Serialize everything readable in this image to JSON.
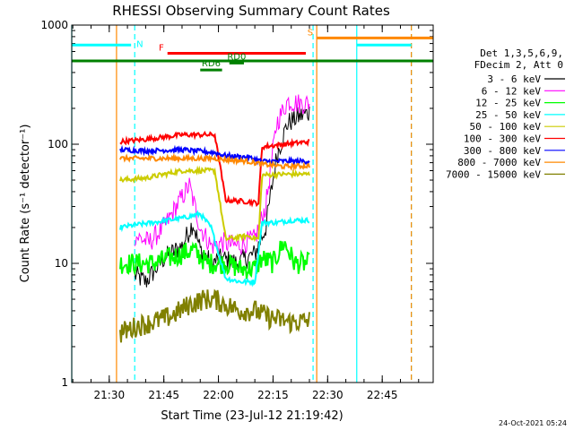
{
  "chart_data": {
    "type": "line",
    "title": "RHESSI Observing Summary Count Rates",
    "xlabel": "Start Time (23-Jul-12 21:19:42)",
    "ylabel": "Count Rate (s⁻¹ detector⁻¹)",
    "yscale": "log",
    "ylim": [
      1,
      1000
    ],
    "xlim": [
      "21:19:42",
      "22:59:00"
    ],
    "x_ticks": [
      "21:30",
      "21:45",
      "22:00",
      "22:15",
      "22:30",
      "22:45"
    ],
    "y_ticks": [
      "1",
      "10",
      "100",
      "1000"
    ],
    "legend_header": [
      "Det 1,3,5,6,9,",
      "FDecim 2, Att 0"
    ],
    "legend_position": "right",
    "footer": "24-Oct-2021 05:24",
    "series": [
      {
        "name": "3 - 6 keV",
        "color": "#000000",
        "points": [
          [
            "21:37",
            8
          ],
          [
            "21:40",
            7
          ],
          [
            "21:45",
            11
          ],
          [
            "21:50",
            14
          ],
          [
            "21:53",
            22
          ],
          [
            "21:55",
            13
          ],
          [
            "21:58",
            10
          ],
          [
            "22:01",
            11
          ],
          [
            "22:05",
            10
          ],
          [
            "22:10",
            12
          ],
          [
            "22:13",
            20
          ],
          [
            "22:16",
            80
          ],
          [
            "22:19",
            150
          ],
          [
            "22:22",
            170
          ],
          [
            "22:25",
            185
          ]
        ]
      },
      {
        "name": "6 - 12 keV",
        "color": "#ff00ff",
        "points": [
          [
            "21:37",
            17
          ],
          [
            "21:41",
            15
          ],
          [
            "21:45",
            20
          ],
          [
            "21:49",
            32
          ],
          [
            "21:52",
            45
          ],
          [
            "21:55",
            20
          ],
          [
            "21:58",
            14
          ],
          [
            "22:01",
            15
          ],
          [
            "22:05",
            14
          ],
          [
            "22:10",
            16
          ],
          [
            "22:13",
            30
          ],
          [
            "22:16",
            150
          ],
          [
            "22:19",
            230
          ],
          [
            "22:22",
            220
          ],
          [
            "22:25",
            220
          ]
        ]
      },
      {
        "name": "12 - 25 keV",
        "color": "#00ff00",
        "points": [
          [
            "21:33",
            10
          ],
          [
            "21:37",
            10
          ],
          [
            "21:42",
            10
          ],
          [
            "21:50",
            12
          ],
          [
            "21:53",
            13
          ],
          [
            "21:57",
            10
          ],
          [
            "22:02",
            10
          ],
          [
            "22:06",
            9
          ],
          [
            "22:10",
            9
          ],
          [
            "22:12",
            11
          ],
          [
            "22:15",
            10
          ],
          [
            "22:18",
            15
          ],
          [
            "22:21",
            10
          ],
          [
            "22:25",
            10
          ]
        ]
      },
      {
        "name": "25 - 50 keV",
        "color": "#00ffff",
        "points": [
          [
            "21:33",
            20
          ],
          [
            "21:37",
            21
          ],
          [
            "21:42",
            22
          ],
          [
            "21:50",
            24
          ],
          [
            "21:55",
            26
          ],
          [
            "21:58",
            20
          ],
          [
            "22:02",
            7.5
          ],
          [
            "22:06",
            7
          ],
          [
            "22:10",
            7
          ],
          [
            "22:12",
            22
          ],
          [
            "22:16",
            22
          ],
          [
            "22:20",
            23
          ],
          [
            "22:25",
            23
          ]
        ]
      },
      {
        "name": "50 - 100 keV",
        "color": "#cccc00",
        "points": [
          [
            "21:33",
            50
          ],
          [
            "21:40",
            52
          ],
          [
            "21:50",
            60
          ],
          [
            "21:59",
            60
          ],
          [
            "22:02",
            16
          ],
          [
            "22:08",
            17
          ],
          [
            "22:11",
            16
          ],
          [
            "22:12",
            55
          ],
          [
            "22:18",
            56
          ],
          [
            "22:25",
            56
          ]
        ]
      },
      {
        "name": "100 - 300 keV",
        "color": "#ff0000",
        "points": [
          [
            "21:33",
            105
          ],
          [
            "21:40",
            110
          ],
          [
            "21:50",
            120
          ],
          [
            "21:59",
            120
          ],
          [
            "22:02",
            34
          ],
          [
            "22:08",
            33
          ],
          [
            "22:11",
            32
          ],
          [
            "22:12",
            95
          ],
          [
            "22:18",
            100
          ],
          [
            "22:25",
            105
          ]
        ]
      },
      {
        "name": "300 - 800 keV",
        "color": "#0000ff",
        "points": [
          [
            "21:33",
            90
          ],
          [
            "21:40",
            88
          ],
          [
            "21:50",
            90
          ],
          [
            "21:59",
            85
          ],
          [
            "22:02",
            80
          ],
          [
            "22:08",
            78
          ],
          [
            "22:12",
            72
          ],
          [
            "22:18",
            72
          ],
          [
            "22:25",
            72
          ]
        ]
      },
      {
        "name": "800 - 7000 keV",
        "color": "#ff8800",
        "points": [
          [
            "21:33",
            76
          ],
          [
            "21:40",
            76
          ],
          [
            "21:50",
            76
          ],
          [
            "21:59",
            76
          ],
          [
            "22:02",
            74
          ],
          [
            "22:08",
            72
          ],
          [
            "22:12",
            68
          ],
          [
            "22:18",
            65
          ],
          [
            "22:25",
            66
          ]
        ]
      },
      {
        "name": "7000 - 15000 keV",
        "color": "#808000",
        "points": [
          [
            "21:33",
            2.6
          ],
          [
            "21:38",
            3
          ],
          [
            "21:42",
            3.2
          ],
          [
            "21:47",
            3.6
          ],
          [
            "21:52",
            4.5
          ],
          [
            "21:56",
            5
          ],
          [
            "21:59",
            5
          ],
          [
            "22:02",
            4.5
          ],
          [
            "22:06",
            4
          ],
          [
            "22:10",
            4
          ],
          [
            "22:14",
            3.5
          ],
          [
            "22:20",
            3.2
          ],
          [
            "22:25",
            3.3
          ]
        ]
      }
    ],
    "flags": [
      {
        "label": "N",
        "color": "#00ffff",
        "level": 680,
        "segments": [
          [
            "21:19:42",
            "21:36"
          ],
          [
            "22:38",
            "22:53"
          ]
        ]
      },
      {
        "label": "F",
        "color": "#ff0000",
        "level": 580,
        "segments": [
          [
            "21:46",
            "22:24"
          ]
        ]
      },
      {
        "label": "S",
        "color": "#ff8800",
        "level": 780,
        "segments": [
          [
            "22:27",
            "22:59"
          ]
        ]
      },
      {
        "label": "",
        "color": "#008000",
        "level": 500,
        "segments": [
          [
            "21:19:42",
            "22:59"
          ]
        ]
      },
      {
        "label": "RD0",
        "color": "#008000",
        "level": 480,
        "segments": [
          [
            "22:03",
            "22:07"
          ]
        ]
      },
      {
        "label": "RD6",
        "color": "#008000",
        "level": 420,
        "segments": [
          [
            "21:55",
            "22:01"
          ]
        ]
      }
    ],
    "vertical_markers": [
      {
        "time": "21:19:42",
        "color": "#00ffff",
        "style": "solid"
      },
      {
        "time": "21:32",
        "color": "#ff8800",
        "style": "solid"
      },
      {
        "time": "21:37",
        "color": "#00ffff",
        "style": "dashed"
      },
      {
        "time": "22:26",
        "color": "#00ffff",
        "style": "dashed"
      },
      {
        "time": "22:27",
        "color": "#ff8800",
        "style": "solid"
      },
      {
        "time": "22:38",
        "color": "#00ffff",
        "style": "solid"
      },
      {
        "time": "22:53",
        "color": "#00ffff",
        "style": "dashed"
      },
      {
        "time": "22:53",
        "color": "#ff8800",
        "style": "dashed"
      }
    ]
  }
}
